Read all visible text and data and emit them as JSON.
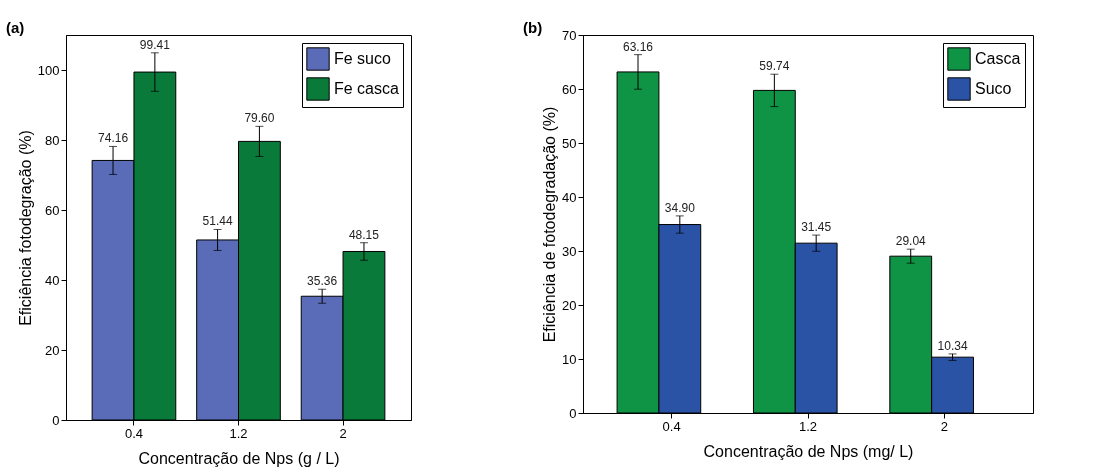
{
  "chart_data": [
    {
      "type": "bar",
      "annotations": [
        "(a)"
      ],
      "xlabel": "Concentração de Nps (g / L)",
      "ylabel": "Eficiência fotodegração (%)",
      "categories": [
        "0.4",
        "1.2",
        "2"
      ],
      "series": [
        {
          "name": "Fe suco",
          "color": "#5a6bb8",
          "values": [
            74.16,
            51.44,
            35.36
          ],
          "errors": [
            4.0,
            3.0,
            2.0
          ],
          "value_labels": [
            "74.16",
            "51.44",
            "35.36"
          ]
        },
        {
          "name": "Fe casca",
          "color": "#0a7a3a",
          "values": [
            99.41,
            79.6,
            48.15
          ],
          "errors": [
            5.5,
            4.3,
            2.5
          ],
          "value_labels": [
            "99.41",
            "79.60",
            "48.15"
          ]
        }
      ],
      "ylim": [
        0,
        110
      ],
      "yticks": [
        0,
        20,
        40,
        60,
        80,
        100
      ],
      "legend": "top right",
      "grid": false
    },
    {
      "type": "bar",
      "annotations": [
        "(b)"
      ],
      "xlabel": "Concentração de Nps (mg/ L)",
      "ylabel": "Eficiência de fotodegradação (%)",
      "categories": [
        "0.4",
        "1.2",
        "2"
      ],
      "series": [
        {
          "name": "Casca",
          "color": "#0e9444",
          "values": [
            63.16,
            59.74,
            29.04
          ],
          "errors": [
            3.2,
            3.0,
            1.3
          ],
          "value_labels": [
            "63.16",
            "59.74",
            "29.04"
          ]
        },
        {
          "name": "Suco",
          "color": "#2a52a5",
          "values": [
            34.9,
            31.45,
            10.34
          ],
          "errors": [
            1.6,
            1.5,
            0.6
          ],
          "value_labels": [
            "34.90",
            "31.45",
            "10.34"
          ]
        }
      ],
      "ylim": [
        0,
        70
      ],
      "yticks": [
        0,
        10,
        20,
        30,
        40,
        50,
        60,
        70
      ],
      "legend": "top right",
      "grid": false
    }
  ]
}
